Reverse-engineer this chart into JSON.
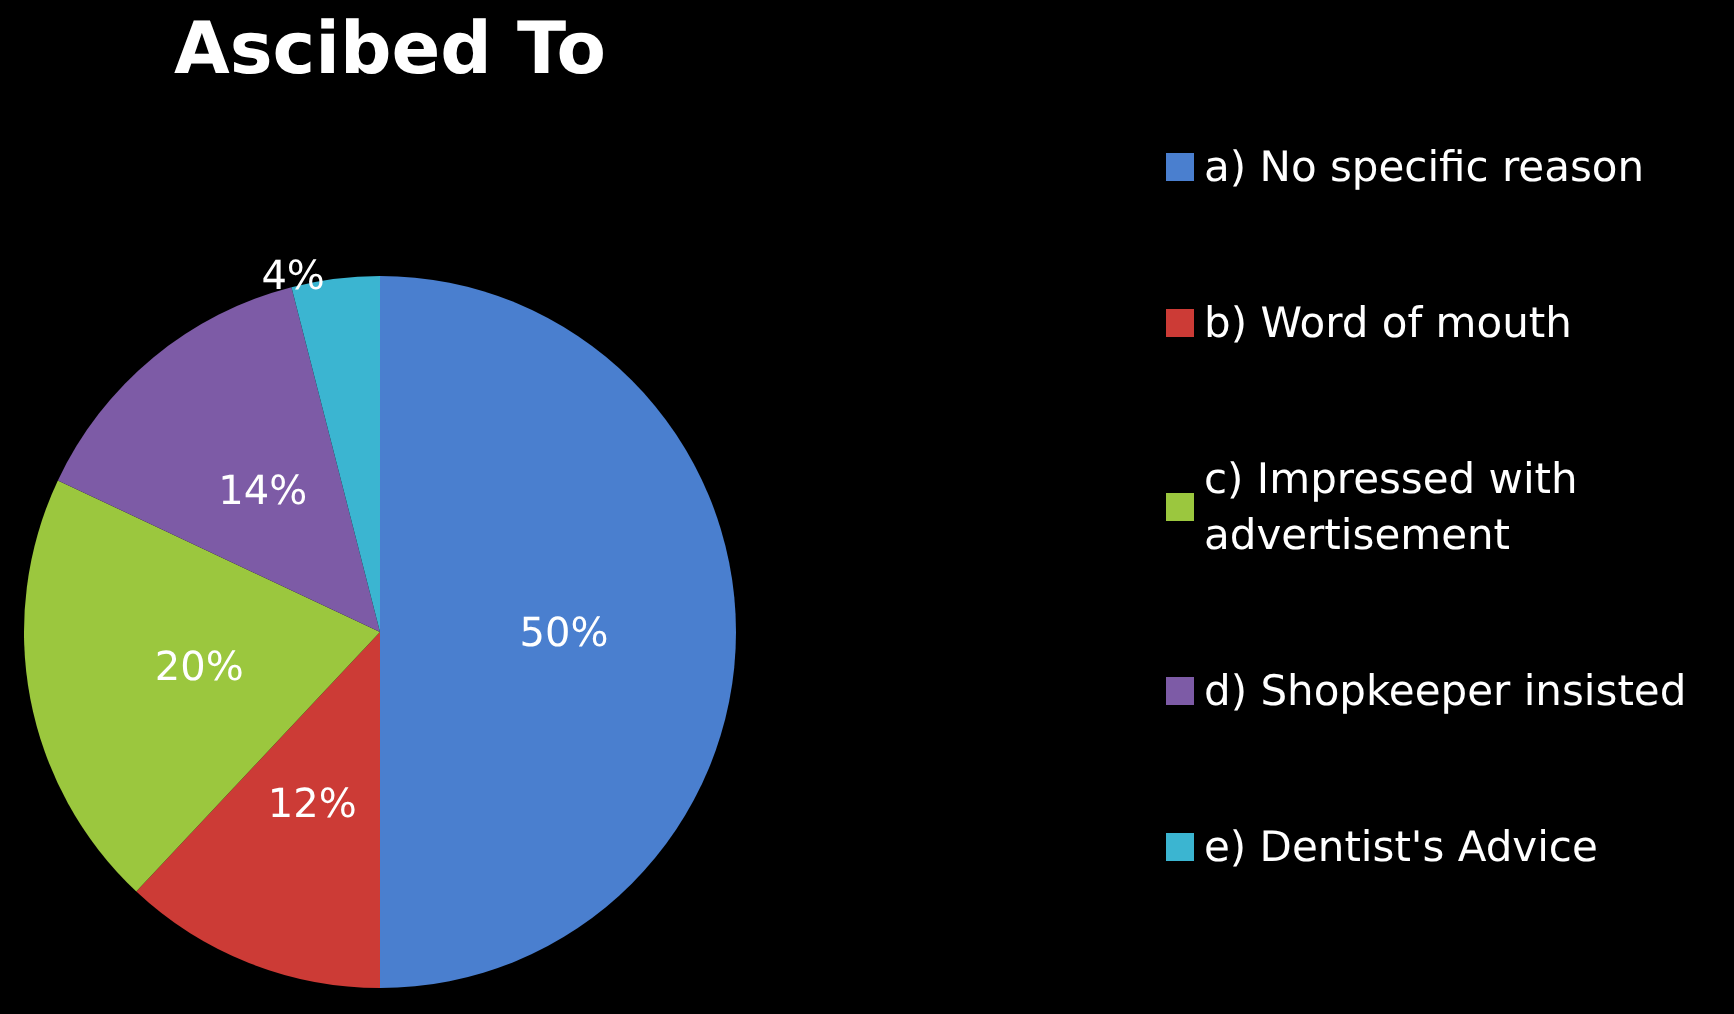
{
  "chart_data": {
    "type": "pie",
    "title": "Ascibed To",
    "categories": [
      "a) No specific reason",
      "b) Word of mouth",
      "c) Impressed with advertisement",
      "d) Shopkeeper insisted",
      "e) Dentist's Advice"
    ],
    "values": [
      50,
      12,
      20,
      14,
      4
    ],
    "colors": [
      "#4a7fcf",
      "#cc3b36",
      "#9bc73e",
      "#7d5ba6",
      "#3bb5d1"
    ],
    "value_labels": [
      "50%",
      "12%",
      "20%",
      "14%",
      "4%"
    ],
    "legend": "right"
  }
}
